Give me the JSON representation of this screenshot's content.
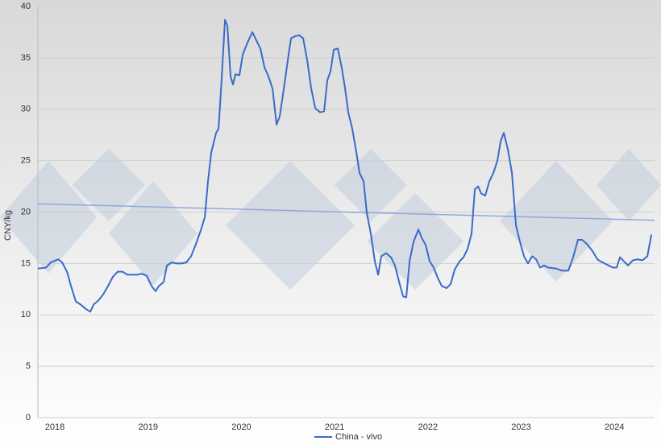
{
  "chart_data": {
    "type": "line",
    "y_label": "CNY/kg",
    "xlim": [
      2017.818,
      2024.43
    ],
    "xticks": [
      2018,
      2019,
      2020,
      2021,
      2022,
      2023,
      2024
    ],
    "ylim": [
      0,
      40
    ],
    "yticks": [
      0,
      5,
      10,
      15,
      20,
      25,
      30,
      35,
      40
    ],
    "grid": true,
    "legend": "bottom",
    "series": [
      {
        "name": "China - vivo",
        "color": "#3a6bc9",
        "x": [
          2017.818,
          2017.905,
          2017.957,
          2018.035,
          2018.078,
          2018.13,
          2018.173,
          2018.225,
          2018.277,
          2018.328,
          2018.38,
          2018.415,
          2018.467,
          2018.519,
          2018.57,
          2018.622,
          2018.674,
          2018.726,
          2018.778,
          2018.83,
          2018.882,
          2018.933,
          2018.985,
          2019.037,
          2019.08,
          2019.115,
          2019.167,
          2019.201,
          2019.253,
          2019.305,
          2019.357,
          2019.409,
          2019.461,
          2019.513,
          2019.564,
          2019.608,
          2019.642,
          2019.677,
          2019.729,
          2019.755,
          2019.789,
          2019.824,
          2019.85,
          2019.884,
          2019.91,
          2019.936,
          2019.979,
          2020.014,
          2020.066,
          2020.118,
          2020.161,
          2020.204,
          2020.247,
          2020.29,
          2020.334,
          2020.377,
          2020.411,
          2020.455,
          2020.498,
          2020.532,
          2020.576,
          2020.619,
          2020.662,
          2020.705,
          2020.749,
          2020.792,
          2020.844,
          2020.887,
          2020.921,
          2020.956,
          2020.991,
          2021.034,
          2021.077,
          2021.112,
          2021.146,
          2021.189,
          2021.233,
          2021.267,
          2021.31,
          2021.345,
          2021.388,
          2021.431,
          2021.466,
          2021.5,
          2021.552,
          2021.604,
          2021.647,
          2021.691,
          2021.734,
          2021.768,
          2021.803,
          2021.846,
          2021.898,
          2021.933,
          2021.976,
          2022.019,
          2022.062,
          2022.105,
          2022.149,
          2022.201,
          2022.244,
          2022.287,
          2022.339,
          2022.382,
          2022.425,
          2022.468,
          2022.503,
          2022.538,
          2022.572,
          2022.615,
          2022.659,
          2022.702,
          2022.745,
          2022.78,
          2022.814,
          2022.857,
          2022.901,
          2022.944,
          2022.987,
          2023.03,
          2023.073,
          2023.117,
          2023.16,
          2023.203,
          2023.246,
          2023.29,
          2023.376,
          2023.437,
          2023.506,
          2023.557,
          2023.609,
          2023.653,
          2023.704,
          2023.765,
          2023.817,
          2023.851,
          2023.895,
          2023.938,
          2023.981,
          2024.024,
          2024.059,
          2024.102,
          2024.145,
          2024.197,
          2024.249,
          2024.301,
          2024.353,
          2024.396
        ],
        "values": [
          14.5,
          14.6,
          15.1,
          15.4,
          15.1,
          14.2,
          12.8,
          11.3,
          11.0,
          10.6,
          10.3,
          11.0,
          11.4,
          12.0,
          12.8,
          13.7,
          14.2,
          14.2,
          13.9,
          13.9,
          13.9,
          14.0,
          13.8,
          12.8,
          12.3,
          12.8,
          13.2,
          14.8,
          15.1,
          15.0,
          15.0,
          15.1,
          15.7,
          16.9,
          18.2,
          19.5,
          23.0,
          25.8,
          27.7,
          28.1,
          33.0,
          38.7,
          38.1,
          33.2,
          32.4,
          33.4,
          33.3,
          35.3,
          36.5,
          37.5,
          36.7,
          35.9,
          34.1,
          33.2,
          32.0,
          28.5,
          29.3,
          32.0,
          34.8,
          36.9,
          37.1,
          37.2,
          36.9,
          34.8,
          32.0,
          30.1,
          29.7,
          29.8,
          32.8,
          33.7,
          35.8,
          35.9,
          34.0,
          32.0,
          29.7,
          28.1,
          25.8,
          23.8,
          23.0,
          19.9,
          17.9,
          15.2,
          13.9,
          15.7,
          16.0,
          15.6,
          14.8,
          13.2,
          11.8,
          11.7,
          15.2,
          17.1,
          18.3,
          17.5,
          16.8,
          15.2,
          14.6,
          13.6,
          12.8,
          12.6,
          13.0,
          14.4,
          15.2,
          15.6,
          16.4,
          17.9,
          22.2,
          22.5,
          21.8,
          21.6,
          23.0,
          23.8,
          25.0,
          26.9,
          27.7,
          26.1,
          23.8,
          18.7,
          17.1,
          15.7,
          15.0,
          15.7,
          15.4,
          14.6,
          14.8,
          14.6,
          14.5,
          14.3,
          14.3,
          15.6,
          17.3,
          17.3,
          16.9,
          16.2,
          15.4,
          15.2,
          15.0,
          14.8,
          14.6,
          14.6,
          15.6,
          15.2,
          14.8,
          15.3,
          15.4,
          15.3,
          15.7,
          17.8
        ]
      }
    ],
    "trendline": {
      "color": "#8fa8dc",
      "x": [
        2017.818,
        2024.43
      ],
      "values": [
        20.8,
        19.2
      ]
    }
  }
}
